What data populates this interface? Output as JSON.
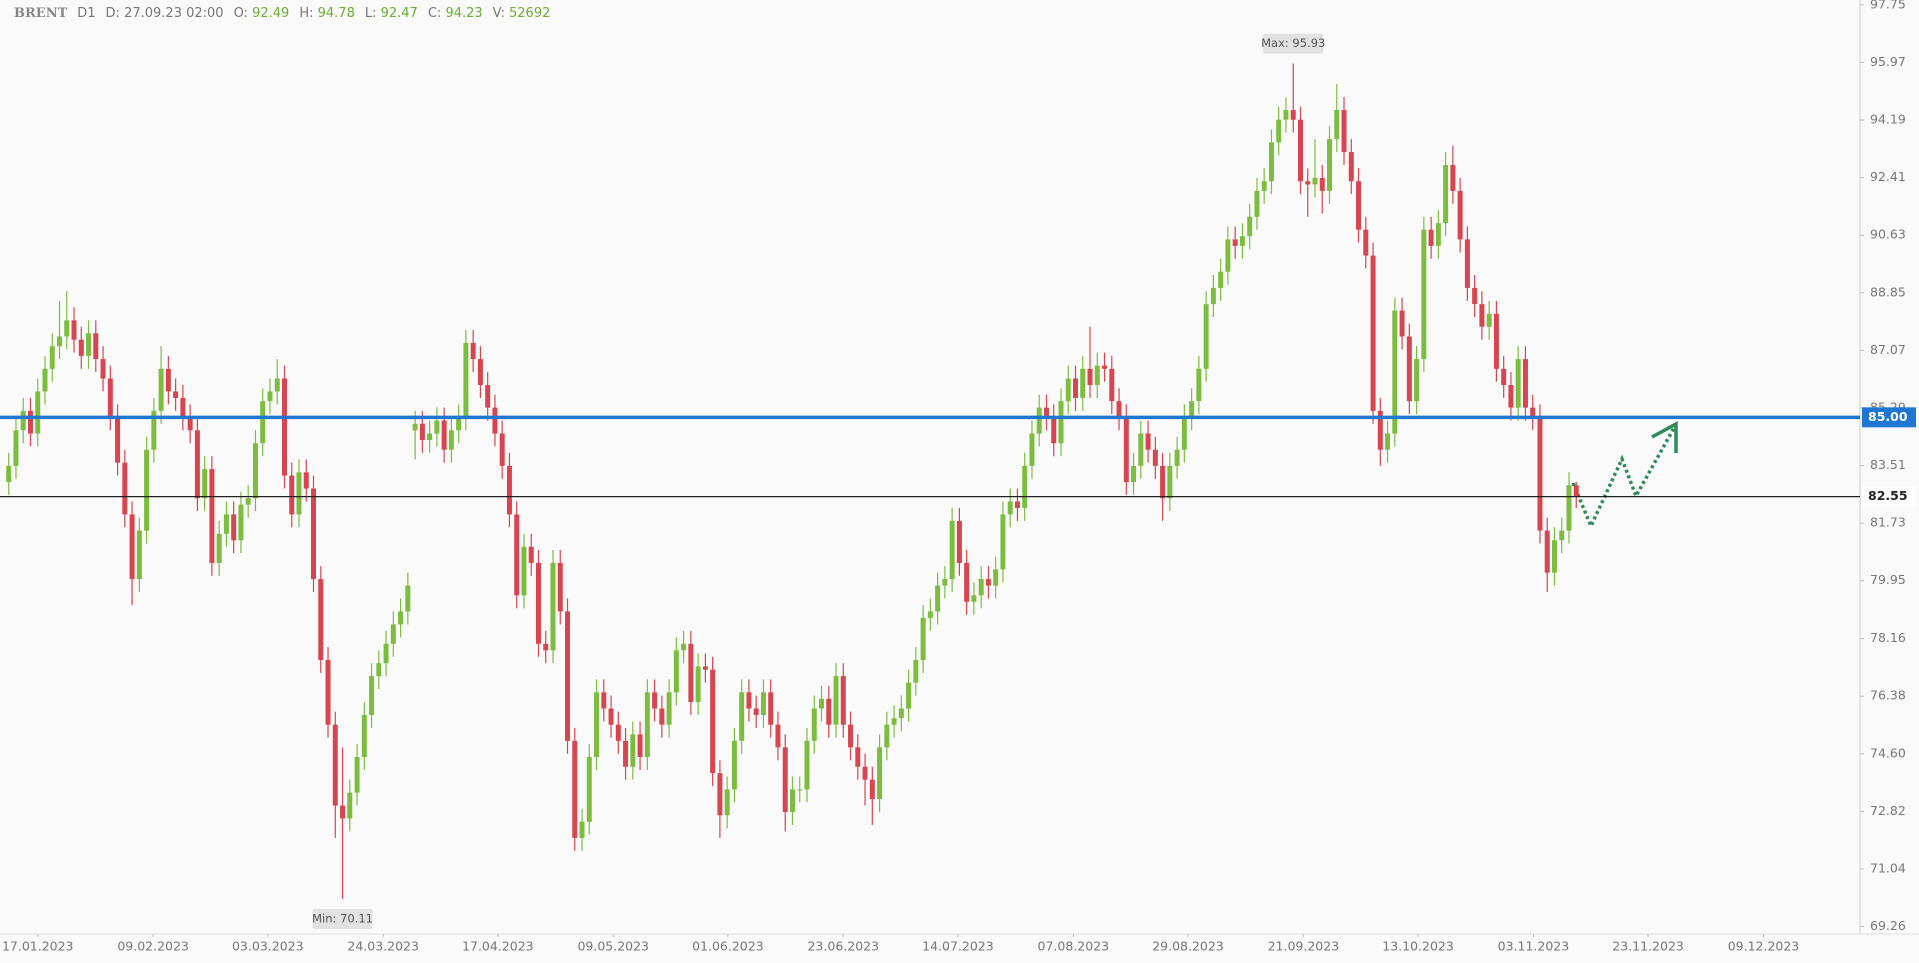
{
  "header": {
    "symbol": "BRENT",
    "timeframe": "D1",
    "fields": [
      {
        "label": "D:",
        "value": "27.09.23 02:00"
      },
      {
        "label": "O:",
        "value": 92.49
      },
      {
        "label": "H:",
        "value": 94.78
      },
      {
        "label": "L:",
        "value": 92.47
      },
      {
        "label": "C:",
        "value": 94.23
      },
      {
        "label": "V:",
        "value": 52692
      }
    ]
  },
  "chart_data": {
    "type": "candlestick",
    "up_color": "#7cbd3f",
    "down_color": "#d64550",
    "open": [
      83.0,
      83.5,
      84.6,
      85.2,
      84.5,
      85.8,
      86.5,
      87.2,
      87.5,
      88.0,
      87.4,
      86.9,
      87.6,
      86.8,
      86.2,
      85.0,
      83.6,
      82.0,
      80.0,
      81.5,
      84.0,
      85.2,
      86.5,
      85.8,
      85.6,
      85.0,
      84.6,
      82.5,
      83.4,
      80.5,
      81.4,
      82.0,
      81.2,
      82.3,
      82.5,
      84.2,
      85.5,
      85.8,
      86.2,
      83.2,
      82.0,
      83.3,
      82.8,
      80.0,
      77.5,
      75.5,
      73.0,
      72.6,
      73.4,
      74.5,
      75.8,
      77.0,
      77.4,
      78.0,
      78.6,
      79.0,
      84.6,
      84.8,
      84.3,
      84.5,
      84.9,
      84.0,
      84.6,
      85.0,
      87.3,
      86.8,
      86.0,
      85.3,
      84.5,
      83.5,
      82.0,
      79.5,
      81.0,
      80.5,
      78.0,
      77.8,
      80.5,
      79.0,
      75.0,
      72.0,
      72.5,
      74.5,
      76.5,
      76.0,
      75.5,
      75.0,
      74.2,
      75.2,
      74.5,
      76.5,
      76.0,
      75.5,
      76.5,
      77.8,
      78.0,
      76.2,
      77.3,
      77.2,
      74.0,
      72.7,
      73.5,
      75.0,
      76.5,
      76.0,
      75.8,
      76.5,
      75.5,
      74.8,
      72.8,
      73.5,
      73.5,
      75.0,
      76.0,
      76.3,
      75.5,
      77.0,
      75.5,
      74.8,
      74.2,
      73.8,
      73.2,
      74.8,
      75.5,
      75.7,
      76.0,
      76.8,
      77.5,
      78.8,
      79.0,
      79.8,
      80.0,
      81.8,
      80.5,
      79.3,
      79.5,
      80.0,
      79.8,
      80.3,
      82.0,
      82.4,
      82.2,
      83.5,
      84.5,
      85.3,
      85.0,
      84.2,
      85.5,
      86.2,
      85.6,
      86.5,
      86.0,
      86.6,
      86.5,
      85.5,
      85.0,
      83.0,
      83.5,
      84.5,
      84.0,
      83.5,
      82.5,
      83.5,
      84.0,
      85.0,
      85.5,
      86.5,
      88.5,
      89.0,
      89.5,
      90.5,
      90.3,
      90.6,
      91.2,
      92.0,
      92.3,
      93.5,
      94.2,
      94.5,
      94.2,
      92.3,
      92.2,
      92.4,
      92.0,
      93.6,
      94.5,
      93.2,
      92.3,
      90.8,
      90.0,
      85.2,
      84.0,
      84.5,
      88.3,
      87.5,
      85.5,
      86.8,
      90.8,
      90.3,
      91.0,
      92.8,
      92.0,
      90.5,
      89.0,
      88.5,
      87.8,
      88.2,
      86.5,
      86.0,
      85.3,
      86.8,
      85.3,
      85.0,
      81.5,
      80.2,
      81.2,
      81.5,
      82.9
    ],
    "high": [
      83.9,
      85.0,
      85.6,
      85.6,
      86.2,
      86.9,
      87.6,
      88.6,
      88.9,
      88.4,
      87.8,
      88.0,
      88.0,
      87.2,
      86.6,
      85.4,
      84.0,
      82.4,
      81.9,
      84.4,
      85.6,
      87.2,
      86.9,
      86.2,
      86.0,
      85.4,
      85.0,
      83.8,
      83.8,
      81.8,
      82.4,
      82.4,
      82.7,
      82.9,
      84.6,
      85.9,
      86.2,
      86.8,
      86.6,
      83.6,
      83.7,
      83.7,
      83.2,
      80.4,
      77.9,
      75.9,
      74.8,
      73.8,
      74.9,
      76.2,
      77.4,
      77.8,
      78.4,
      79.0,
      79.4,
      80.2,
      85.2,
      85.2,
      84.9,
      85.3,
      85.3,
      85.0,
      85.4,
      87.7,
      87.7,
      87.2,
      86.4,
      85.7,
      84.9,
      83.9,
      82.4,
      81.4,
      81.4,
      80.9,
      78.4,
      80.9,
      80.9,
      79.4,
      75.4,
      72.9,
      74.9,
      76.9,
      76.9,
      76.4,
      75.9,
      75.4,
      75.6,
      75.6,
      76.9,
      76.9,
      76.4,
      76.9,
      78.2,
      78.4,
      78.4,
      77.7,
      77.7,
      77.6,
      74.4,
      73.9,
      75.4,
      76.9,
      76.9,
      76.4,
      76.9,
      76.9,
      75.9,
      75.2,
      73.9,
      73.9,
      75.4,
      76.4,
      76.7,
      76.7,
      77.4,
      77.4,
      75.9,
      75.2,
      74.6,
      74.2,
      75.2,
      75.9,
      76.1,
      76.4,
      77.2,
      77.9,
      79.2,
      79.4,
      80.2,
      80.4,
      82.2,
      82.2,
      80.9,
      79.9,
      80.4,
      80.4,
      80.7,
      82.4,
      82.8,
      82.8,
      83.9,
      84.9,
      85.7,
      85.7,
      85.4,
      85.9,
      86.6,
      86.6,
      86.9,
      87.8,
      87.0,
      87.0,
      86.9,
      85.9,
      85.4,
      83.9,
      84.9,
      84.9,
      84.4,
      83.9,
      83.9,
      84.4,
      85.4,
      85.9,
      86.9,
      88.9,
      89.4,
      89.9,
      90.9,
      90.9,
      91.0,
      91.6,
      92.4,
      92.7,
      93.9,
      94.6,
      94.9,
      95.93,
      94.6,
      92.7,
      93.6,
      92.8,
      94.0,
      95.3,
      94.9,
      93.6,
      92.7,
      91.2,
      90.4,
      85.6,
      84.9,
      88.7,
      88.7,
      87.9,
      87.2,
      91.2,
      91.2,
      91.4,
      93.2,
      93.4,
      92.4,
      90.9,
      89.4,
      88.9,
      88.6,
      88.6,
      86.9,
      86.4,
      87.2,
      87.2,
      85.7,
      85.4,
      81.9,
      81.6,
      81.9,
      83.3,
      83.0
    ],
    "low": [
      82.6,
      83.1,
      84.2,
      84.1,
      84.1,
      85.4,
      86.1,
      86.8,
      87.1,
      87.0,
      86.5,
      86.5,
      86.4,
      85.8,
      84.6,
      83.2,
      81.6,
      79.2,
      79.6,
      81.1,
      83.6,
      84.8,
      85.4,
      85.2,
      84.6,
      84.2,
      82.1,
      82.1,
      80.1,
      80.1,
      81.0,
      80.8,
      80.8,
      81.9,
      82.1,
      83.8,
      85.1,
      85.4,
      82.8,
      81.6,
      81.6,
      82.4,
      79.6,
      77.1,
      75.1,
      72.0,
      70.11,
      72.2,
      73.0,
      74.1,
      75.4,
      76.6,
      77.0,
      77.6,
      78.2,
      78.6,
      83.7,
      83.9,
      83.9,
      84.1,
      83.6,
      83.6,
      84.2,
      84.6,
      86.4,
      85.6,
      84.9,
      84.1,
      83.1,
      81.6,
      79.1,
      79.1,
      80.1,
      77.6,
      77.4,
      77.4,
      78.6,
      74.6,
      71.6,
      71.6,
      72.1,
      74.1,
      75.6,
      75.1,
      74.6,
      73.8,
      73.8,
      74.1,
      74.1,
      75.6,
      75.1,
      75.1,
      76.1,
      77.4,
      75.8,
      75.8,
      76.8,
      73.6,
      72.0,
      72.3,
      73.1,
      74.6,
      75.6,
      75.4,
      75.4,
      75.1,
      74.4,
      72.2,
      72.4,
      73.1,
      73.1,
      74.6,
      75.6,
      75.1,
      75.1,
      75.1,
      74.4,
      73.8,
      73.0,
      72.4,
      72.8,
      74.4,
      75.1,
      75.3,
      75.6,
      76.4,
      77.1,
      78.4,
      78.6,
      79.4,
      79.6,
      80.1,
      78.9,
      78.9,
      79.1,
      79.4,
      79.4,
      79.9,
      81.6,
      81.8,
      81.8,
      83.1,
      84.1,
      84.6,
      83.8,
      83.8,
      85.1,
      85.2,
      85.2,
      85.6,
      85.6,
      86.1,
      85.1,
      84.6,
      82.6,
      82.6,
      83.1,
      83.6,
      83.1,
      81.8,
      82.1,
      83.1,
      83.6,
      84.6,
      85.1,
      86.1,
      88.1,
      88.6,
      89.1,
      89.9,
      89.9,
      90.2,
      90.8,
      91.6,
      91.9,
      93.1,
      93.8,
      93.8,
      91.9,
      91.2,
      91.8,
      91.3,
      91.6,
      93.2,
      92.8,
      91.9,
      90.4,
      89.6,
      84.8,
      83.5,
      83.6,
      84.1,
      87.1,
      85.1,
      85.1,
      86.4,
      89.9,
      89.9,
      90.6,
      91.6,
      90.1,
      88.6,
      88.1,
      87.4,
      87.4,
      86.1,
      85.6,
      84.9,
      84.9,
      84.9,
      84.6,
      81.1,
      79.6,
      79.8,
      80.8,
      81.1,
      82.2
    ],
    "close": [
      83.5,
      84.6,
      85.2,
      84.5,
      85.8,
      86.5,
      87.2,
      87.5,
      88.0,
      87.4,
      86.9,
      87.6,
      86.8,
      86.2,
      85.0,
      83.6,
      82.0,
      80.0,
      81.5,
      84.0,
      85.2,
      86.5,
      85.8,
      85.6,
      85.0,
      84.6,
      82.5,
      83.4,
      80.5,
      81.4,
      82.0,
      81.2,
      82.3,
      82.5,
      84.2,
      85.5,
      85.8,
      86.2,
      83.2,
      82.0,
      83.3,
      82.8,
      80.0,
      77.5,
      75.5,
      73.0,
      72.6,
      73.4,
      74.5,
      75.8,
      77.0,
      77.4,
      78.0,
      78.6,
      79.0,
      79.8,
      84.8,
      84.3,
      84.5,
      84.9,
      84.0,
      84.6,
      85.0,
      87.3,
      86.8,
      86.0,
      85.3,
      84.5,
      83.5,
      82.0,
      79.5,
      81.0,
      80.5,
      78.0,
      77.8,
      80.5,
      79.0,
      75.0,
      72.0,
      72.5,
      74.5,
      76.5,
      76.0,
      75.5,
      75.0,
      74.2,
      75.2,
      74.5,
      76.5,
      76.0,
      75.5,
      76.5,
      77.8,
      78.0,
      76.2,
      77.3,
      77.2,
      74.0,
      72.7,
      73.5,
      75.0,
      76.5,
      76.0,
      75.8,
      76.5,
      75.5,
      74.8,
      72.8,
      73.5,
      73.5,
      75.0,
      76.0,
      76.3,
      75.5,
      77.0,
      75.5,
      74.8,
      74.2,
      73.8,
      73.2,
      74.8,
      75.5,
      75.7,
      76.0,
      76.8,
      77.5,
      78.8,
      79.0,
      79.8,
      80.0,
      81.8,
      80.5,
      79.3,
      79.5,
      80.0,
      79.8,
      80.3,
      82.0,
      82.4,
      82.2,
      83.5,
      84.5,
      85.3,
      85.0,
      84.2,
      85.5,
      86.2,
      85.6,
      86.5,
      86.0,
      86.6,
      86.5,
      85.5,
      85.0,
      83.0,
      83.5,
      84.5,
      84.0,
      83.5,
      82.5,
      83.5,
      84.0,
      85.0,
      85.5,
      86.5,
      88.5,
      89.0,
      89.5,
      90.5,
      90.3,
      90.6,
      91.2,
      92.0,
      92.3,
      93.5,
      94.2,
      94.5,
      94.2,
      92.3,
      92.2,
      92.4,
      92.0,
      93.6,
      94.5,
      93.2,
      92.3,
      90.8,
      90.0,
      85.2,
      84.0,
      84.5,
      88.3,
      87.5,
      85.5,
      86.8,
      90.8,
      90.3,
      91.0,
      92.8,
      92.0,
      90.5,
      89.0,
      88.5,
      87.8,
      88.2,
      86.5,
      86.0,
      85.3,
      86.8,
      85.3,
      85.0,
      81.5,
      80.2,
      81.2,
      81.5,
      82.9,
      82.55
    ],
    "max_label": "Max: 95.93",
    "min_label": "Min: 70.11",
    "ylim": [
      69.03,
      97.9
    ],
    "yticks": [
      97.75,
      95.97,
      94.19,
      92.41,
      90.63,
      88.85,
      87.07,
      85.29,
      83.51,
      81.73,
      79.95,
      78.16,
      76.38,
      {
        "value": 74.6,
        "label": "74.60"
      },
      72.82,
      71.04,
      69.26
    ],
    "xlim": [
      -1.2,
      255.1
    ],
    "xticks": [
      {
        "value": 4,
        "label": "17.01.2023"
      },
      {
        "value": 19.9,
        "label": "09.02.2023"
      },
      {
        "value": 35.7,
        "label": "03.03.2023"
      },
      {
        "value": 51.6,
        "label": "24.03.2023"
      },
      {
        "value": 67.4,
        "label": "17.04.2023"
      },
      {
        "value": 83.3,
        "label": "09.05.2023"
      },
      {
        "value": 99.1,
        "label": "01.06.2023"
      },
      {
        "value": 115,
        "label": "23.06.2023"
      },
      {
        "value": 130.8,
        "label": "14.07.2023"
      },
      {
        "value": 146.7,
        "label": "07.08.2023"
      },
      {
        "value": 162.5,
        "label": "29.08.2023"
      },
      {
        "value": 178.4,
        "label": "21.09.2023"
      },
      {
        "value": 194.2,
        "label": "13.10.2023"
      },
      {
        "value": 210.1,
        "label": "03.11.2023"
      },
      {
        "value": 225.9,
        "label": "23.11.2023"
      },
      {
        "value": 241.8,
        "label": "09.12.2023"
      }
    ],
    "levels": [
      {
        "value": 85,
        "label": "85.00",
        "color": "#1f77d4"
      },
      {
        "value": 82.55,
        "label": "82.55",
        "color": "#222222"
      }
    ]
  }
}
